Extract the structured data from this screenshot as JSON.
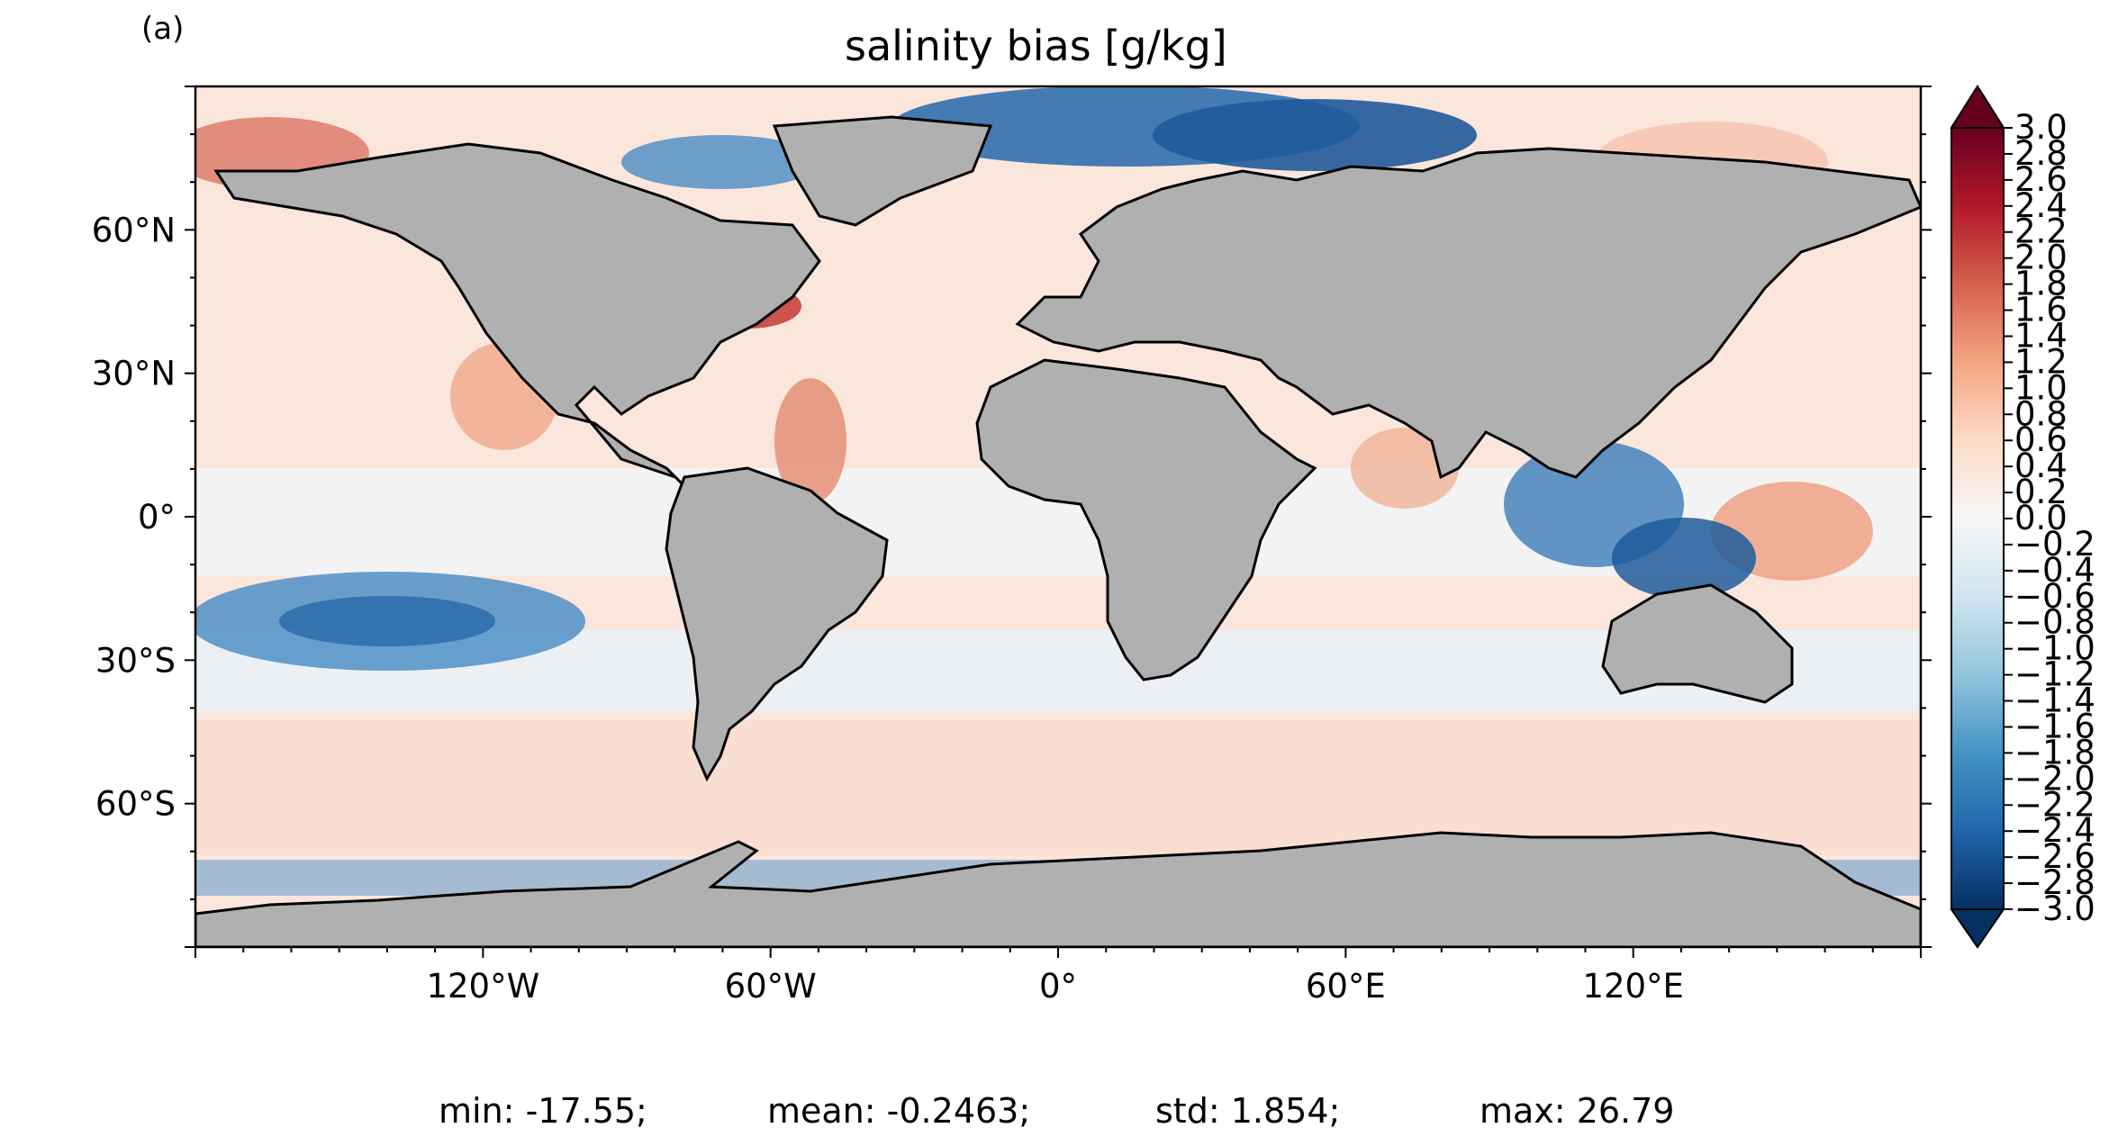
{
  "panel_label": "(a)",
  "title": "salinity bias [g/kg]",
  "x_axis": {
    "range": [
      -180,
      180
    ],
    "ticks": [
      {
        "value": -120,
        "label": "120°W"
      },
      {
        "value": -60,
        "label": "60°W"
      },
      {
        "value": 0,
        "label": "0°"
      },
      {
        "value": 60,
        "label": "60°E"
      },
      {
        "value": 120,
        "label": "120°E"
      }
    ]
  },
  "y_axis": {
    "range": [
      -90,
      90
    ],
    "ticks": [
      {
        "value": 60,
        "label": "60°N"
      },
      {
        "value": 30,
        "label": "30°N"
      },
      {
        "value": 0,
        "label": "0°"
      },
      {
        "value": -30,
        "label": "30°S"
      },
      {
        "value": -60,
        "label": "60°S"
      }
    ]
  },
  "colorbar": {
    "min": -3.0,
    "max": 3.0,
    "extend": "both",
    "colormap": "RdBu_r",
    "tick_labels": [
      "3.0",
      "2.8",
      "2.6",
      "2.4",
      "2.2",
      "2.0",
      "1.8",
      "1.6",
      "1.4",
      "1.2",
      "1.0",
      "0.8",
      "0.6",
      "0.4",
      "0.2",
      "0.0",
      "−0.2",
      "−0.4",
      "−0.6",
      "−0.8",
      "−1.0",
      "−1.2",
      "−1.4",
      "−1.6",
      "−1.8",
      "−2.0",
      "−2.2",
      "−2.4",
      "−2.6",
      "−2.8",
      "−3.0"
    ],
    "colors": [
      "#67001f",
      "#b2182b",
      "#d6604d",
      "#f4a582",
      "#fddbc7",
      "#f7f7f7",
      "#d1e5f0",
      "#92c5de",
      "#4393c3",
      "#2166ac",
      "#053061"
    ]
  },
  "land_color": "#b0b0b0",
  "stats": [
    {
      "label": "min:",
      "value": "-17.55;"
    },
    {
      "label": "mean:",
      "value": "-0.2463;"
    },
    {
      "label": "std:",
      "value": "1.854;"
    },
    {
      "label": "max:",
      "value": "26.79"
    }
  ]
}
